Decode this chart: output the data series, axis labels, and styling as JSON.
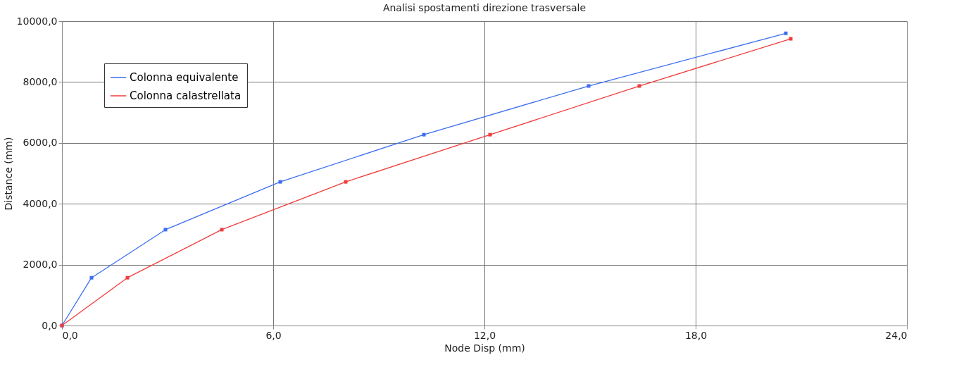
{
  "chart_data": {
    "type": "line",
    "title": "Analisi spostamenti direzione trasversale",
    "xlabel": "Node Disp  (mm)",
    "ylabel": "Distance (mm)",
    "series": [
      {
        "name": "Colonna equivalente",
        "color": "#3c6ef0",
        "x": [
          0,
          0.84,
          2.94,
          6.2,
          10.28,
          14.96,
          20.56
        ],
        "values": [
          0,
          1570,
          3150,
          4720,
          6270,
          7870,
          9600
        ]
      },
      {
        "name": "Colonna calastrellata",
        "color": "#f03c3c",
        "x": [
          0,
          1.86,
          4.54,
          8.06,
          12.16,
          16.4,
          20.7
        ],
        "values": [
          0,
          1570,
          3150,
          4720,
          6270,
          7870,
          9420
        ]
      }
    ],
    "xlim": [
      0,
      24
    ],
    "ylim": [
      0,
      10000
    ],
    "xticks": [
      {
        "value": 0,
        "label": "0,0"
      },
      {
        "value": 6,
        "label": "6,0"
      },
      {
        "value": 12,
        "label": "12,0"
      },
      {
        "value": 18,
        "label": "18,0"
      },
      {
        "value": 24,
        "label": "24,0"
      }
    ],
    "yticks": [
      {
        "value": 0,
        "label": "0,0"
      },
      {
        "value": 2000,
        "label": "2000,0"
      },
      {
        "value": 4000,
        "label": "4000,0"
      },
      {
        "value": 6000,
        "label": "6000,0"
      },
      {
        "value": 8000,
        "label": "8000,0"
      },
      {
        "value": 10000,
        "label": "10000,0"
      }
    ],
    "grid": true,
    "legend": "top left",
    "marker": "square",
    "line_style": "solid"
  }
}
